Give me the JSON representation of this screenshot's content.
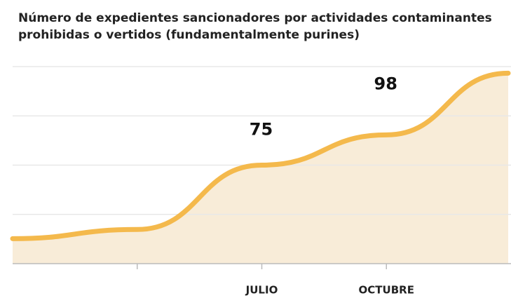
{
  "chart_data": {
    "type": "area",
    "title": "Número de expedientes sancionadores por actividades contaminantes prohibidas o vertidos (fundamentalmente purines)",
    "categories": [
      null,
      null,
      "JULIO",
      "OCTUBRE",
      null
    ],
    "values": [
      19,
      26,
      75,
      98,
      145
    ],
    "color": "#f4b94c",
    "fill": "#f8ecd8",
    "ylim": [
      0,
      150
    ],
    "yticks": [
      0,
      37.5,
      75,
      112.5,
      150
    ],
    "grid": true
  }
}
